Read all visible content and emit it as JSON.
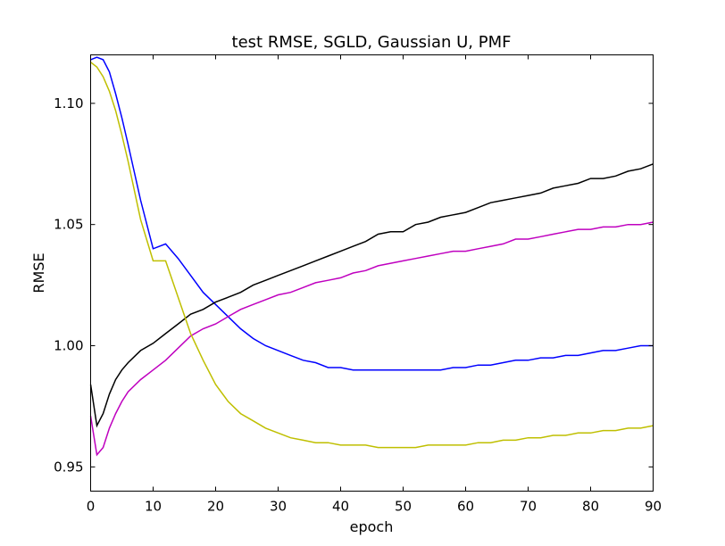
{
  "chart_data": {
    "type": "line",
    "title": "test RMSE, SGLD, Gaussian U, PMF",
    "xlabel": "epoch",
    "ylabel": "RMSE",
    "xlim": [
      0,
      90
    ],
    "ylim": [
      0.94,
      1.12
    ],
    "xticks": [
      0,
      10,
      20,
      30,
      40,
      50,
      60,
      70,
      80,
      90
    ],
    "xtick_labels": [
      "0",
      "10",
      "20",
      "30",
      "40",
      "50",
      "60",
      "70",
      "80",
      "90"
    ],
    "yticks": [
      0.95,
      1.0,
      1.05,
      1.1
    ],
    "ytick_labels": [
      "0.95",
      "1.00",
      "1.05",
      "1.10"
    ],
    "grid": false,
    "legend": "none",
    "series": [
      {
        "color": "#0000ff",
        "x": [
          0,
          1,
          2,
          3,
          4,
          5,
          6,
          8,
          10,
          12,
          14,
          16,
          18,
          20,
          22,
          24,
          26,
          28,
          30,
          32,
          34,
          36,
          38,
          40,
          42,
          44,
          46,
          48,
          50,
          52,
          54,
          56,
          58,
          60,
          62,
          64,
          66,
          68,
          70,
          72,
          74,
          76,
          78,
          80,
          82,
          84,
          86,
          88,
          90
        ],
        "y": [
          1.118,
          1.119,
          1.118,
          1.113,
          1.104,
          1.094,
          1.083,
          1.06,
          1.04,
          1.042,
          1.036,
          1.029,
          1.022,
          1.017,
          1.012,
          1.007,
          1.003,
          1.0,
          0.998,
          0.996,
          0.994,
          0.993,
          0.991,
          0.991,
          0.99,
          0.99,
          0.99,
          0.99,
          0.99,
          0.99,
          0.99,
          0.99,
          0.991,
          0.991,
          0.992,
          0.992,
          0.993,
          0.994,
          0.994,
          0.995,
          0.995,
          0.996,
          0.996,
          0.997,
          0.998,
          0.998,
          0.999,
          1.0,
          1.0
        ]
      },
      {
        "color": "#000000",
        "x": [
          0,
          1,
          2,
          3,
          4,
          5,
          6,
          8,
          10,
          12,
          14,
          16,
          18,
          20,
          22,
          24,
          26,
          28,
          30,
          32,
          34,
          36,
          38,
          40,
          42,
          44,
          46,
          48,
          50,
          52,
          54,
          56,
          58,
          60,
          62,
          64,
          66,
          68,
          70,
          72,
          74,
          76,
          78,
          80,
          82,
          84,
          86,
          88,
          90
        ],
        "y": [
          0.984,
          0.967,
          0.972,
          0.98,
          0.986,
          0.99,
          0.993,
          0.998,
          1.001,
          1.005,
          1.009,
          1.013,
          1.015,
          1.018,
          1.02,
          1.022,
          1.025,
          1.027,
          1.029,
          1.031,
          1.033,
          1.035,
          1.037,
          1.039,
          1.041,
          1.043,
          1.046,
          1.047,
          1.047,
          1.05,
          1.051,
          1.053,
          1.054,
          1.055,
          1.057,
          1.059,
          1.06,
          1.061,
          1.062,
          1.063,
          1.065,
          1.066,
          1.067,
          1.069,
          1.069,
          1.07,
          1.072,
          1.073,
          1.075
        ]
      },
      {
        "color": "#bf00bf",
        "x": [
          0,
          1,
          2,
          3,
          4,
          5,
          6,
          8,
          10,
          12,
          14,
          16,
          18,
          20,
          22,
          24,
          26,
          28,
          30,
          32,
          34,
          36,
          38,
          40,
          42,
          44,
          46,
          48,
          50,
          52,
          54,
          56,
          58,
          60,
          62,
          64,
          66,
          68,
          70,
          72,
          74,
          76,
          78,
          80,
          82,
          84,
          86,
          88,
          90
        ],
        "y": [
          0.971,
          0.955,
          0.958,
          0.966,
          0.972,
          0.977,
          0.981,
          0.986,
          0.99,
          0.994,
          0.999,
          1.004,
          1.007,
          1.009,
          1.012,
          1.015,
          1.017,
          1.019,
          1.021,
          1.022,
          1.024,
          1.026,
          1.027,
          1.028,
          1.03,
          1.031,
          1.033,
          1.034,
          1.035,
          1.036,
          1.037,
          1.038,
          1.039,
          1.039,
          1.04,
          1.041,
          1.042,
          1.044,
          1.044,
          1.045,
          1.046,
          1.047,
          1.048,
          1.048,
          1.049,
          1.049,
          1.05,
          1.05,
          1.051
        ]
      },
      {
        "color": "#bfbf00",
        "x": [
          0,
          1,
          2,
          3,
          4,
          5,
          6,
          8,
          10,
          12,
          14,
          16,
          18,
          20,
          22,
          24,
          26,
          28,
          30,
          32,
          34,
          36,
          38,
          40,
          42,
          44,
          46,
          48,
          50,
          52,
          54,
          56,
          58,
          60,
          62,
          64,
          66,
          68,
          70,
          72,
          74,
          76,
          78,
          80,
          82,
          84,
          86,
          88,
          90
        ],
        "y": [
          1.117,
          1.115,
          1.111,
          1.105,
          1.097,
          1.087,
          1.076,
          1.052,
          1.035,
          1.035,
          1.02,
          1.005,
          0.994,
          0.984,
          0.977,
          0.972,
          0.969,
          0.966,
          0.964,
          0.962,
          0.961,
          0.96,
          0.96,
          0.959,
          0.959,
          0.959,
          0.958,
          0.958,
          0.958,
          0.958,
          0.959,
          0.959,
          0.959,
          0.959,
          0.96,
          0.96,
          0.961,
          0.961,
          0.962,
          0.962,
          0.963,
          0.963,
          0.964,
          0.964,
          0.965,
          0.965,
          0.966,
          0.966,
          0.967
        ]
      }
    ]
  }
}
